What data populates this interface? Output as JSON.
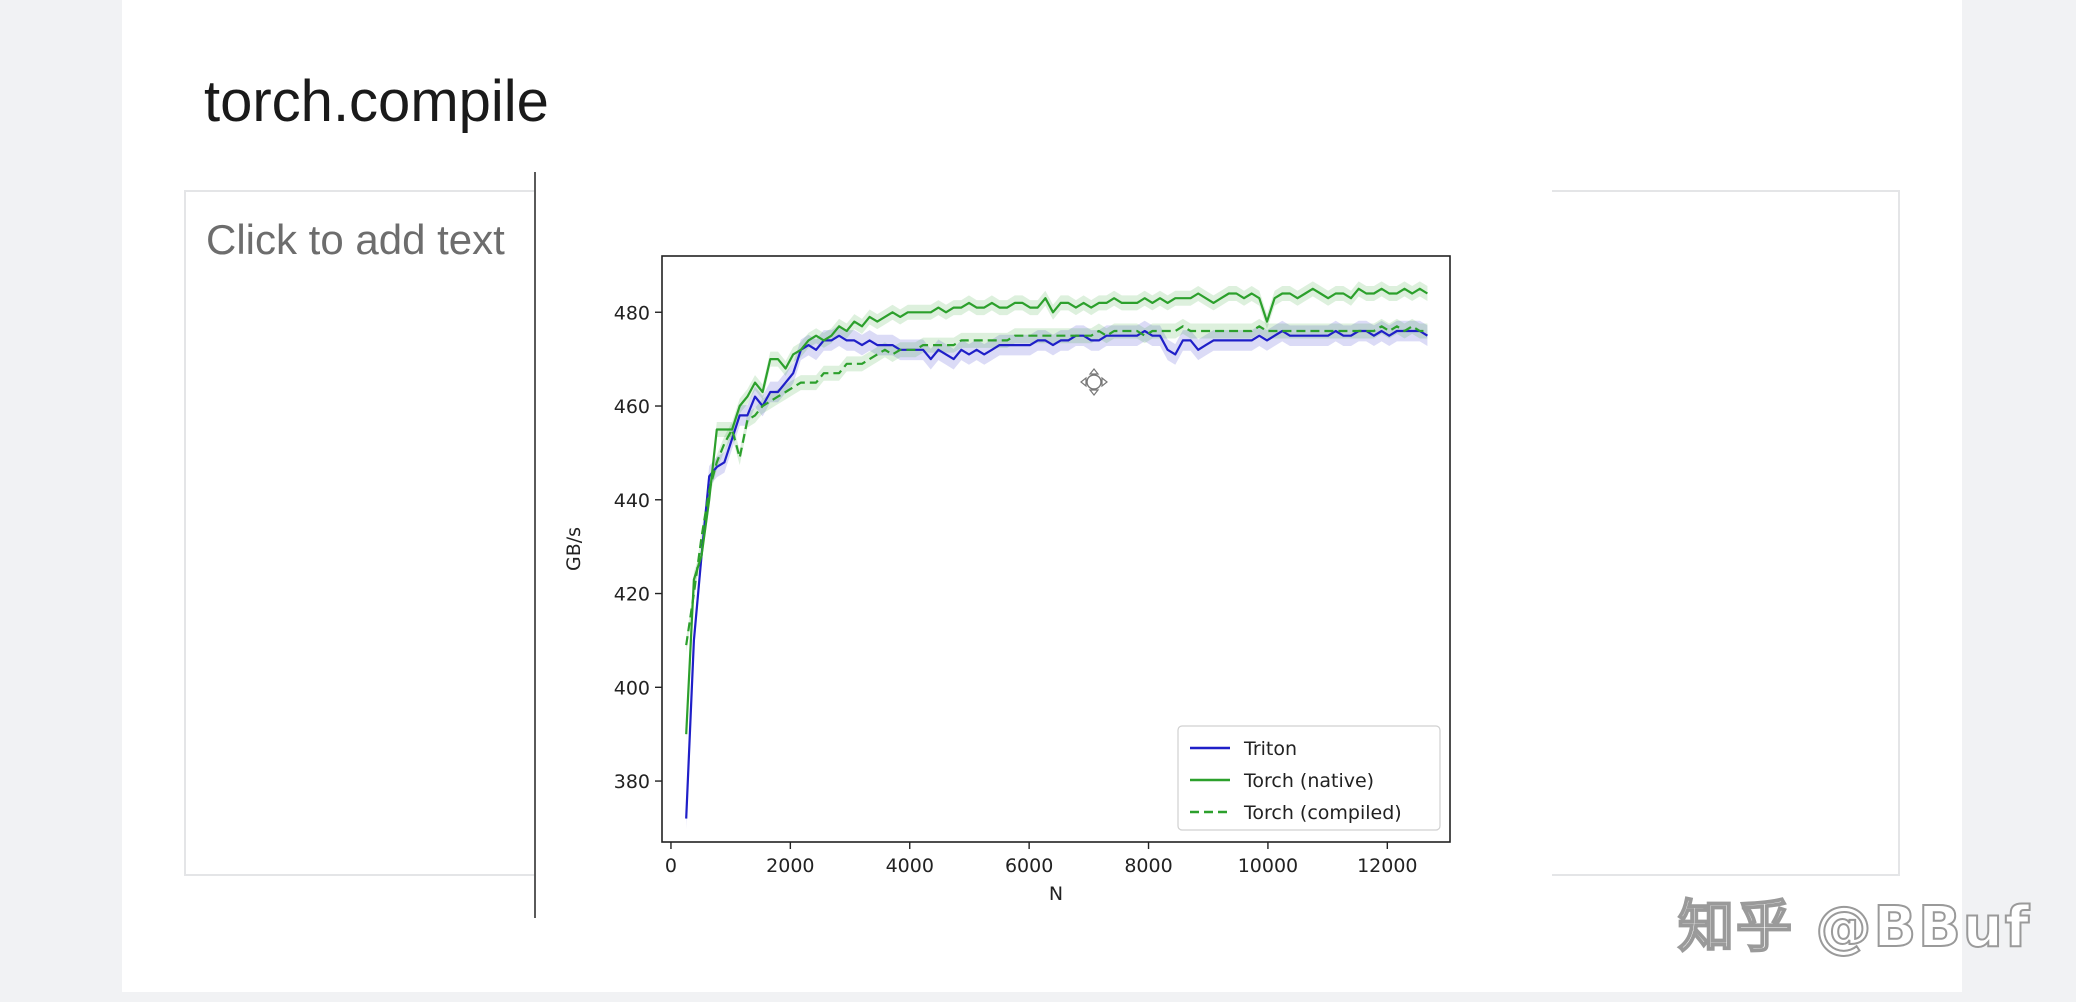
{
  "slide": {
    "title": "torch.compile",
    "placeholder": "Click to add text"
  },
  "watermark": "知乎 @BBuf",
  "chart_data": {
    "type": "line",
    "title": "",
    "xlabel": "N",
    "ylabel": "GB/s",
    "xlim": [
      -150,
      13050
    ],
    "ylim": [
      367,
      492
    ],
    "x_ticks": [
      0,
      2000,
      4000,
      6000,
      8000,
      10000,
      12000
    ],
    "y_ticks": [
      380,
      400,
      420,
      440,
      460,
      480
    ],
    "grid": false,
    "legend_position": "lower-right",
    "series": [
      {
        "name": "Triton",
        "color": "#1f1fc8",
        "style": "solid",
        "points": [
          [
            256,
            372
          ],
          [
            384,
            410
          ],
          [
            512,
            428
          ],
          [
            640,
            445
          ],
          [
            768,
            447
          ],
          [
            896,
            448
          ],
          [
            1024,
            453
          ],
          [
            1152,
            458
          ],
          [
            1280,
            458
          ],
          [
            1408,
            462
          ],
          [
            1536,
            460
          ],
          [
            1664,
            463
          ],
          [
            1792,
            463
          ],
          [
            1920,
            465
          ],
          [
            2048,
            467
          ],
          [
            2176,
            472
          ],
          [
            2304,
            473
          ],
          [
            2432,
            472
          ],
          [
            2560,
            474
          ],
          [
            2688,
            474
          ],
          [
            2816,
            475
          ],
          [
            2944,
            474
          ],
          [
            3072,
            474
          ],
          [
            3200,
            473
          ],
          [
            3328,
            474
          ],
          [
            3456,
            473
          ],
          [
            3584,
            473
          ],
          [
            3712,
            473
          ],
          [
            3840,
            472
          ],
          [
            3968,
            472
          ],
          [
            4096,
            472
          ],
          [
            4224,
            472
          ],
          [
            4352,
            470
          ],
          [
            4480,
            472
          ],
          [
            4608,
            471
          ],
          [
            4736,
            470
          ],
          [
            4864,
            472
          ],
          [
            4992,
            471
          ],
          [
            5120,
            472
          ],
          [
            5248,
            471
          ],
          [
            5376,
            472
          ],
          [
            5504,
            473
          ],
          [
            5632,
            473
          ],
          [
            5760,
            473
          ],
          [
            5888,
            473
          ],
          [
            6016,
            473
          ],
          [
            6144,
            474
          ],
          [
            6272,
            474
          ],
          [
            6400,
            473
          ],
          [
            6528,
            474
          ],
          [
            6656,
            474
          ],
          [
            6784,
            475
          ],
          [
            6912,
            475
          ],
          [
            7040,
            474
          ],
          [
            7168,
            474
          ],
          [
            7296,
            475
          ],
          [
            7424,
            475
          ],
          [
            7552,
            475
          ],
          [
            7680,
            475
          ],
          [
            7808,
            475
          ],
          [
            7936,
            476
          ],
          [
            8064,
            475
          ],
          [
            8192,
            475
          ],
          [
            8320,
            472
          ],
          [
            8448,
            471
          ],
          [
            8576,
            474
          ],
          [
            8704,
            474
          ],
          [
            8832,
            472
          ],
          [
            8960,
            473
          ],
          [
            9088,
            474
          ],
          [
            9216,
            474
          ],
          [
            9344,
            474
          ],
          [
            9472,
            474
          ],
          [
            9600,
            474
          ],
          [
            9728,
            474
          ],
          [
            9856,
            475
          ],
          [
            9984,
            474
          ],
          [
            10112,
            475
          ],
          [
            10240,
            476
          ],
          [
            10368,
            475
          ],
          [
            10496,
            475
          ],
          [
            10624,
            475
          ],
          [
            10752,
            475
          ],
          [
            10880,
            475
          ],
          [
            11008,
            475
          ],
          [
            11136,
            476
          ],
          [
            11264,
            475
          ],
          [
            11392,
            475
          ],
          [
            11520,
            476
          ],
          [
            11648,
            476
          ],
          [
            11776,
            475
          ],
          [
            11904,
            476
          ],
          [
            12032,
            475
          ],
          [
            12160,
            476
          ],
          [
            12288,
            476
          ],
          [
            12416,
            476
          ],
          [
            12544,
            476
          ],
          [
            12672,
            475
          ]
        ]
      },
      {
        "name": "Torch (native)",
        "color": "#2ca02c",
        "style": "solid",
        "points": [
          [
            256,
            390
          ],
          [
            384,
            423
          ],
          [
            512,
            428
          ],
          [
            640,
            440
          ],
          [
            768,
            455
          ],
          [
            896,
            455
          ],
          [
            1024,
            455
          ],
          [
            1152,
            460
          ],
          [
            1280,
            462
          ],
          [
            1408,
            465
          ],
          [
            1536,
            463
          ],
          [
            1664,
            470
          ],
          [
            1792,
            470
          ],
          [
            1920,
            468
          ],
          [
            2048,
            471
          ],
          [
            2176,
            472
          ],
          [
            2304,
            474
          ],
          [
            2432,
            475
          ],
          [
            2560,
            474
          ],
          [
            2688,
            475
          ],
          [
            2816,
            477
          ],
          [
            2944,
            476
          ],
          [
            3072,
            478
          ],
          [
            3200,
            477
          ],
          [
            3328,
            479
          ],
          [
            3456,
            478
          ],
          [
            3584,
            479
          ],
          [
            3712,
            480
          ],
          [
            3840,
            479
          ],
          [
            3968,
            480
          ],
          [
            4096,
            480
          ],
          [
            4224,
            480
          ],
          [
            4352,
            480
          ],
          [
            4480,
            481
          ],
          [
            4608,
            480
          ],
          [
            4736,
            481
          ],
          [
            4864,
            481
          ],
          [
            4992,
            482
          ],
          [
            5120,
            481
          ],
          [
            5248,
            481
          ],
          [
            5376,
            482
          ],
          [
            5504,
            481
          ],
          [
            5632,
            481
          ],
          [
            5760,
            482
          ],
          [
            5888,
            482
          ],
          [
            6016,
            481
          ],
          [
            6144,
            481
          ],
          [
            6272,
            483
          ],
          [
            6400,
            480
          ],
          [
            6528,
            482
          ],
          [
            6656,
            482
          ],
          [
            6784,
            481
          ],
          [
            6912,
            482
          ],
          [
            7040,
            481
          ],
          [
            7168,
            482
          ],
          [
            7296,
            482
          ],
          [
            7424,
            483
          ],
          [
            7552,
            482
          ],
          [
            7680,
            482
          ],
          [
            7808,
            482
          ],
          [
            7936,
            483
          ],
          [
            8064,
            482
          ],
          [
            8192,
            483
          ],
          [
            8320,
            482
          ],
          [
            8448,
            483
          ],
          [
            8576,
            483
          ],
          [
            8704,
            483
          ],
          [
            8832,
            484
          ],
          [
            8960,
            483
          ],
          [
            9088,
            482
          ],
          [
            9216,
            483
          ],
          [
            9344,
            484
          ],
          [
            9472,
            484
          ],
          [
            9600,
            483
          ],
          [
            9728,
            484
          ],
          [
            9856,
            483
          ],
          [
            9984,
            478
          ],
          [
            10112,
            483
          ],
          [
            10240,
            484
          ],
          [
            10368,
            484
          ],
          [
            10496,
            483
          ],
          [
            10624,
            484
          ],
          [
            10752,
            485
          ],
          [
            10880,
            484
          ],
          [
            11008,
            483
          ],
          [
            11136,
            484
          ],
          [
            11264,
            484
          ],
          [
            11392,
            483
          ],
          [
            11520,
            485
          ],
          [
            11648,
            484
          ],
          [
            11776,
            484
          ],
          [
            11904,
            485
          ],
          [
            12032,
            484
          ],
          [
            12160,
            484
          ],
          [
            12288,
            485
          ],
          [
            12416,
            484
          ],
          [
            12544,
            485
          ],
          [
            12672,
            484
          ]
        ]
      },
      {
        "name": "Torch (compiled)",
        "color": "#2ca02c",
        "style": "dashed",
        "points": [
          [
            256,
            409
          ],
          [
            384,
            420
          ],
          [
            512,
            432
          ],
          [
            640,
            442
          ],
          [
            768,
            448
          ],
          [
            896,
            452
          ],
          [
            1024,
            455
          ],
          [
            1152,
            449
          ],
          [
            1280,
            457
          ],
          [
            1408,
            458
          ],
          [
            1536,
            460
          ],
          [
            1664,
            461
          ],
          [
            1792,
            462
          ],
          [
            1920,
            463
          ],
          [
            2048,
            464
          ],
          [
            2176,
            465
          ],
          [
            2304,
            465
          ],
          [
            2432,
            465
          ],
          [
            2560,
            467
          ],
          [
            2688,
            467
          ],
          [
            2816,
            467
          ],
          [
            2944,
            469
          ],
          [
            3072,
            469
          ],
          [
            3200,
            469
          ],
          [
            3328,
            470
          ],
          [
            3456,
            471
          ],
          [
            3584,
            472
          ],
          [
            3712,
            471
          ],
          [
            3840,
            472
          ],
          [
            3968,
            472
          ],
          [
            4096,
            472
          ],
          [
            4224,
            473
          ],
          [
            4352,
            473
          ],
          [
            4480,
            473
          ],
          [
            4608,
            473
          ],
          [
            4736,
            473
          ],
          [
            4864,
            474
          ],
          [
            4992,
            474
          ],
          [
            5120,
            474
          ],
          [
            5248,
            474
          ],
          [
            5376,
            474
          ],
          [
            5504,
            474
          ],
          [
            5632,
            474
          ],
          [
            5760,
            475
          ],
          [
            5888,
            475
          ],
          [
            6016,
            475
          ],
          [
            6144,
            475
          ],
          [
            6272,
            475
          ],
          [
            6400,
            475
          ],
          [
            6528,
            475
          ],
          [
            6656,
            475
          ],
          [
            6784,
            475
          ],
          [
            6912,
            475
          ],
          [
            7040,
            475
          ],
          [
            7168,
            476
          ],
          [
            7296,
            475
          ],
          [
            7424,
            476
          ],
          [
            7552,
            476
          ],
          [
            7680,
            476
          ],
          [
            7808,
            476
          ],
          [
            7936,
            475
          ],
          [
            8064,
            476
          ],
          [
            8192,
            476
          ],
          [
            8320,
            476
          ],
          [
            8448,
            476
          ],
          [
            8576,
            477
          ],
          [
            8704,
            476
          ],
          [
            8832,
            476
          ],
          [
            8960,
            476
          ],
          [
            9088,
            476
          ],
          [
            9216,
            476
          ],
          [
            9344,
            476
          ],
          [
            9472,
            476
          ],
          [
            9600,
            476
          ],
          [
            9728,
            476
          ],
          [
            9856,
            477
          ],
          [
            9984,
            476
          ],
          [
            10112,
            476
          ],
          [
            10240,
            476
          ],
          [
            10368,
            476
          ],
          [
            10496,
            476
          ],
          [
            10624,
            476
          ],
          [
            10752,
            476
          ],
          [
            10880,
            476
          ],
          [
            11008,
            476
          ],
          [
            11136,
            476
          ],
          [
            11264,
            476
          ],
          [
            11392,
            476
          ],
          [
            11520,
            476
          ],
          [
            11648,
            476
          ],
          [
            11776,
            476
          ],
          [
            11904,
            477
          ],
          [
            12032,
            476
          ],
          [
            12160,
            477
          ],
          [
            12288,
            476
          ],
          [
            12416,
            477
          ],
          [
            12544,
            476
          ],
          [
            12672,
            476
          ]
        ]
      }
    ]
  }
}
